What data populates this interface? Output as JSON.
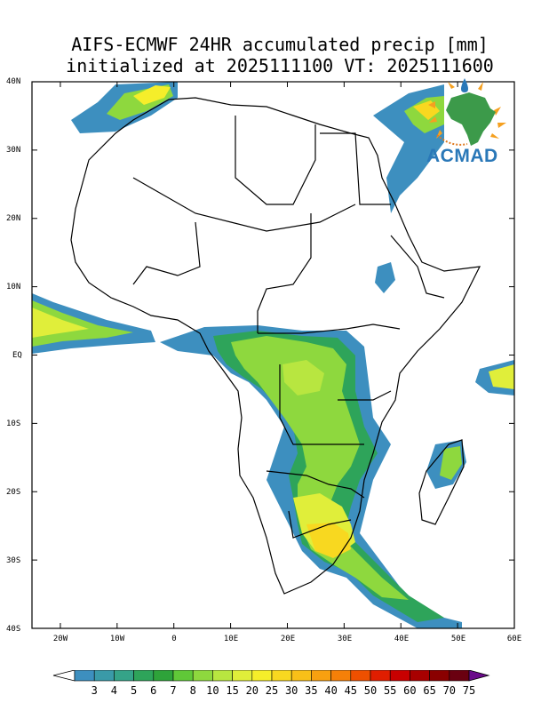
{
  "title": {
    "line1": "AIFS-ECMWF 24HR accumulated precip [mm]",
    "line2": "initialized at 2025111100 VT: 2025111600"
  },
  "map": {
    "lat_labels": [
      "40N",
      "30N",
      "20N",
      "10N",
      "EQ",
      "10S",
      "20S",
      "30S",
      "40S"
    ],
    "lon_labels": [
      "20W",
      "10W",
      "0",
      "10E",
      "20E",
      "30E",
      "40E",
      "50E",
      "60E"
    ],
    "lon_range": [
      -25,
      60
    ],
    "lat_range": [
      -40,
      40
    ]
  },
  "logo": {
    "text": "ACMAD"
  },
  "colorbar": {
    "labels": [
      "3",
      "4",
      "5",
      "6",
      "7",
      "8",
      "10",
      "15",
      "20",
      "25",
      "30",
      "35",
      "40",
      "45",
      "50",
      "55",
      "60",
      "65",
      "70",
      "75"
    ],
    "colors": [
      "#3d8fbf",
      "#3a9aa8",
      "#35a388",
      "#2ea45a",
      "#2ea33a",
      "#60c838",
      "#8ed83e",
      "#b8e640",
      "#e0ee3a",
      "#f5ee2a",
      "#f8d820",
      "#f8c018",
      "#f8a010",
      "#f58008",
      "#ee5000",
      "#e01e00",
      "#c80000",
      "#a80000",
      "#8a0000",
      "#6a0010"
    ],
    "below_color": "#ffffff",
    "above_color": "#6a0a8a"
  }
}
